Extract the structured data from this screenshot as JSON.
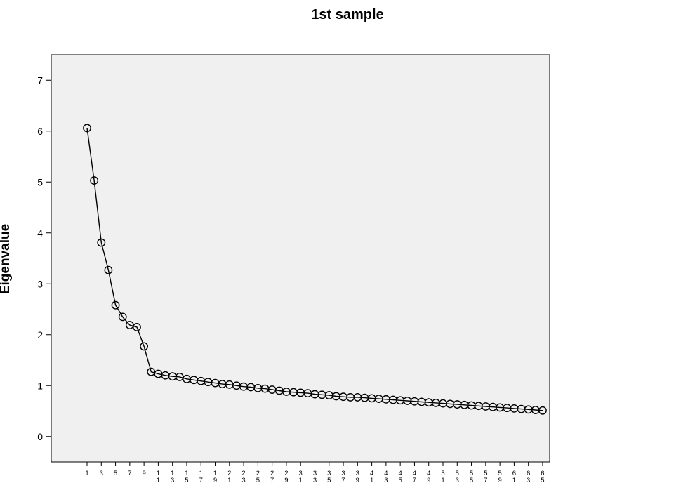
{
  "chart_data": {
    "type": "line",
    "title": "1st sample",
    "xlabel": "",
    "ylabel": "Eigenvalue",
    "ylim": [
      -0.5,
      7.5
    ],
    "yticks": [
      0,
      1,
      2,
      3,
      4,
      5,
      6,
      7
    ],
    "grid": false,
    "marker": "open-circle",
    "background": "#f0f0f0",
    "line_color": "#000000",
    "x_tick_labels": [
      "1",
      "3",
      "5",
      "7",
      "9",
      "11",
      "13",
      "15",
      "17",
      "19",
      "21",
      "23",
      "25",
      "27",
      "29",
      "31",
      "33",
      "35",
      "37",
      "39",
      "41",
      "43",
      "45",
      "47",
      "49",
      "51",
      "53",
      "55",
      "57",
      "59",
      "61",
      "63",
      "65"
    ],
    "x": [
      1,
      2,
      3,
      4,
      5,
      6,
      7,
      8,
      9,
      10,
      11,
      12,
      13,
      14,
      15,
      16,
      17,
      18,
      19,
      20,
      21,
      22,
      23,
      24,
      25,
      26,
      27,
      28,
      29,
      30,
      31,
      32,
      33,
      34,
      35,
      36,
      37,
      38,
      39,
      40,
      41,
      42,
      43,
      44,
      45,
      46,
      47,
      48,
      49,
      50,
      51,
      52,
      53,
      54,
      55,
      56,
      57,
      58,
      59,
      60,
      61,
      62,
      63,
      64,
      65
    ],
    "series": [
      {
        "values": [
          6.06,
          5.03,
          3.81,
          3.27,
          2.58,
          2.35,
          2.19,
          2.15,
          1.77,
          1.27,
          1.23,
          1.2,
          1.18,
          1.17,
          1.13,
          1.11,
          1.09,
          1.07,
          1.05,
          1.03,
          1.02,
          1.0,
          0.98,
          0.97,
          0.95,
          0.94,
          0.92,
          0.9,
          0.88,
          0.87,
          0.86,
          0.85,
          0.83,
          0.82,
          0.81,
          0.79,
          0.78,
          0.77,
          0.77,
          0.76,
          0.75,
          0.74,
          0.73,
          0.72,
          0.71,
          0.7,
          0.69,
          0.68,
          0.67,
          0.66,
          0.65,
          0.64,
          0.63,
          0.62,
          0.61,
          0.6,
          0.59,
          0.58,
          0.57,
          0.56,
          0.55,
          0.54,
          0.53,
          0.52,
          0.51
        ]
      }
    ]
  }
}
